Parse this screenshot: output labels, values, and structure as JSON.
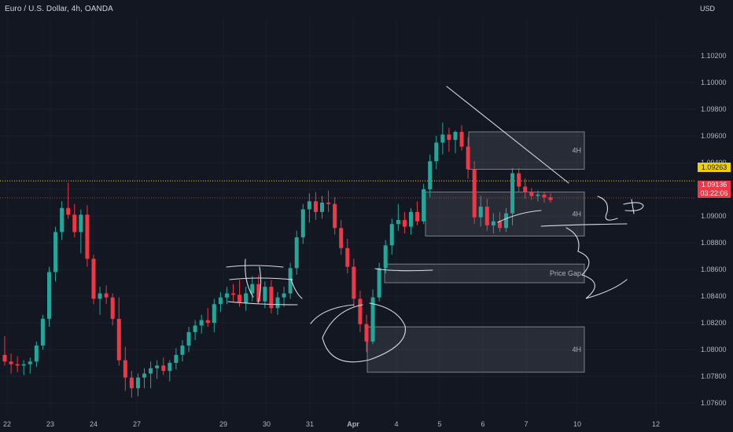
{
  "header": {
    "title": "Euro / U.S. Dollar, 4h, OANDA",
    "currency": "USD"
  },
  "colors": {
    "background": "#131722",
    "bullish": "#26a69a",
    "bearish": "#f23645",
    "text": "#b2b5be",
    "dotted_line": "#e8d400",
    "current_price_line": "#f23645"
  },
  "chart_data": {
    "type": "candlestick",
    "symbol": "EURUSD",
    "timeframe": "4h",
    "ylim": [
      1.075,
      1.105
    ],
    "y_ticks": [
      "1.10200",
      "1.10000",
      "1.09800",
      "1.09600",
      "1.09400",
      "1.09200",
      "1.09000",
      "1.08800",
      "1.08600",
      "1.08400",
      "1.08200",
      "1.08000",
      "1.07800",
      "1.07600"
    ],
    "x_tick_labels": [
      "22",
      "23",
      "24",
      "27",
      "29",
      "30",
      "31",
      "Apr",
      "4",
      "5",
      "6",
      "7",
      "10",
      "12"
    ],
    "levels": {
      "dotted_price": "1.09263",
      "current_price": "1.09136",
      "countdown": "03:22:06"
    },
    "zones": [
      {
        "label": "4H",
        "y_top": 1.0963,
        "y_bottom": 1.0935
      },
      {
        "label": "4H",
        "y_top": 1.0918,
        "y_bottom": 1.0885
      },
      {
        "label": "Price Gap",
        "y_top": 1.0864,
        "y_bottom": 1.085
      },
      {
        "label": "4H",
        "y_top": 1.0817,
        "y_bottom": 1.0783
      }
    ],
    "candles": [
      [
        1.0796,
        1.081,
        1.0788,
        1.0791
      ],
      [
        1.0791,
        1.0797,
        1.0782,
        1.0789
      ],
      [
        1.0789,
        1.0795,
        1.0783,
        1.0788
      ],
      [
        1.0788,
        1.0792,
        1.0781,
        1.0789
      ],
      [
        1.0789,
        1.0794,
        1.0782,
        1.0791
      ],
      [
        1.0791,
        1.0806,
        1.0787,
        1.0803
      ],
      [
        1.0803,
        1.0826,
        1.08,
        1.0823
      ],
      [
        1.0823,
        1.0862,
        1.0817,
        1.0858
      ],
      [
        1.0858,
        1.0892,
        1.0851,
        1.0888
      ],
      [
        1.0888,
        1.0911,
        1.0882,
        1.0906
      ],
      [
        1.0906,
        1.0925,
        1.0898,
        1.0901
      ],
      [
        1.0901,
        1.0909,
        1.0884,
        1.0888
      ],
      [
        1.0888,
        1.0905,
        1.0872,
        1.0901
      ],
      [
        1.0901,
        1.0908,
        1.0862,
        1.0868
      ],
      [
        1.0868,
        1.0871,
        1.0834,
        1.0838
      ],
      [
        1.0838,
        1.0847,
        1.0826,
        1.0842
      ],
      [
        1.0842,
        1.0848,
        1.0834,
        1.0839
      ],
      [
        1.0839,
        1.0842,
        1.0818,
        1.0823
      ],
      [
        1.0823,
        1.0839,
        1.0788,
        1.0792
      ],
      [
        1.0792,
        1.0802,
        1.0769,
        1.0779
      ],
      [
        1.0779,
        1.0784,
        1.0764,
        1.0771
      ],
      [
        1.0771,
        1.0782,
        1.0765,
        1.0779
      ],
      [
        1.0779,
        1.0786,
        1.0771,
        1.0782
      ],
      [
        1.0782,
        1.0791,
        1.0771,
        1.0786
      ],
      [
        1.0786,
        1.0792,
        1.0778,
        1.0788
      ],
      [
        1.0788,
        1.0794,
        1.0781,
        1.0784
      ],
      [
        1.0784,
        1.0792,
        1.0776,
        1.079
      ],
      [
        1.079,
        1.0801,
        1.0785,
        1.0796
      ],
      [
        1.0796,
        1.0807,
        1.0791,
        1.0803
      ],
      [
        1.0803,
        1.0817,
        1.0798,
        1.0813
      ],
      [
        1.0813,
        1.0822,
        1.0807,
        1.0818
      ],
      [
        1.0818,
        1.0826,
        1.0812,
        1.0822
      ],
      [
        1.0822,
        1.0831,
        1.0817,
        1.082
      ],
      [
        1.082,
        1.0838,
        1.0813,
        1.0834
      ],
      [
        1.0834,
        1.0843,
        1.0828,
        1.0839
      ],
      [
        1.0839,
        1.0847,
        1.0834,
        1.0842
      ],
      [
        1.0842,
        1.0849,
        1.0836,
        1.0841
      ],
      [
        1.0841,
        1.0852,
        1.0832,
        1.0835
      ],
      [
        1.0835,
        1.0847,
        1.0829,
        1.0842
      ],
      [
        1.0842,
        1.0855,
        1.0836,
        1.0849
      ],
      [
        1.0849,
        1.0856,
        1.0834,
        1.0836
      ],
      [
        1.0836,
        1.0851,
        1.0831,
        1.0847
      ],
      [
        1.0847,
        1.0852,
        1.0827,
        1.0831
      ],
      [
        1.0831,
        1.0843,
        1.0826,
        1.0839
      ],
      [
        1.0839,
        1.0847,
        1.0832,
        1.0842
      ],
      [
        1.0842,
        1.0865,
        1.0838,
        1.0861
      ],
      [
        1.0861,
        1.0889,
        1.0856,
        1.0884
      ],
      [
        1.0884,
        1.0909,
        1.0879,
        1.0905
      ],
      [
        1.0905,
        1.0917,
        1.0895,
        1.0911
      ],
      [
        1.0911,
        1.0918,
        1.0897,
        1.0903
      ],
      [
        1.0903,
        1.0915,
        1.0898,
        1.091
      ],
      [
        1.091,
        1.0919,
        1.0903,
        1.0909
      ],
      [
        1.0909,
        1.0914,
        1.0886,
        1.0891
      ],
      [
        1.0891,
        1.0897,
        1.0871,
        1.0876
      ],
      [
        1.0876,
        1.0883,
        1.0857,
        1.0862
      ],
      [
        1.0862,
        1.0868,
        1.0832,
        1.0838
      ],
      [
        1.0838,
        1.0844,
        1.0813,
        1.0819
      ],
      [
        1.0819,
        1.0826,
        1.0798,
        1.0806
      ],
      [
        1.0806,
        1.0845,
        1.0804,
        1.0839
      ],
      [
        1.0839,
        1.0865,
        1.0836,
        1.0861
      ],
      [
        1.0861,
        1.0882,
        1.0857,
        1.0878
      ],
      [
        1.0878,
        1.0898,
        1.0871,
        1.0894
      ],
      [
        1.0894,
        1.0909,
        1.0889,
        1.0897
      ],
      [
        1.0897,
        1.0903,
        1.0887,
        1.0892
      ],
      [
        1.0892,
        1.0906,
        1.0886,
        1.0903
      ],
      [
        1.0903,
        1.0911,
        1.0893,
        1.0896
      ],
      [
        1.0896,
        1.0924,
        1.0894,
        1.092
      ],
      [
        1.092,
        1.0946,
        1.0914,
        1.0941
      ],
      [
        1.0941,
        1.096,
        1.0935,
        1.0955
      ],
      [
        1.0955,
        1.097,
        1.0946,
        1.0961
      ],
      [
        1.0961,
        1.0966,
        1.0948,
        1.0957
      ],
      [
        1.0957,
        1.0964,
        1.0947,
        1.0963
      ],
      [
        1.0963,
        1.0968,
        1.0949,
        1.0952
      ],
      [
        1.0952,
        1.0959,
        1.0928,
        1.0935
      ],
      [
        1.0935,
        1.0941,
        1.0894,
        1.0899
      ],
      [
        1.0899,
        1.0915,
        1.0892,
        1.0907
      ],
      [
        1.0907,
        1.0913,
        1.0889,
        1.0893
      ],
      [
        1.0893,
        1.0902,
        1.0887,
        1.0896
      ],
      [
        1.0896,
        1.0903,
        1.0888,
        1.0891
      ],
      [
        1.0891,
        1.0906,
        1.0888,
        1.0902
      ],
      [
        1.0902,
        1.0936,
        1.0893,
        1.0932
      ],
      [
        1.0932,
        1.0936,
        1.0918,
        1.0922
      ],
      [
        1.0922,
        1.0928,
        1.0913,
        1.0918
      ],
      [
        1.0918,
        1.0921,
        1.0912,
        1.0915
      ],
      [
        1.0915,
        1.0919,
        1.0911,
        1.0916
      ],
      [
        1.0916,
        1.0918,
        1.091,
        1.0914
      ],
      [
        1.0914,
        1.0917,
        1.091,
        1.0912
      ]
    ]
  }
}
